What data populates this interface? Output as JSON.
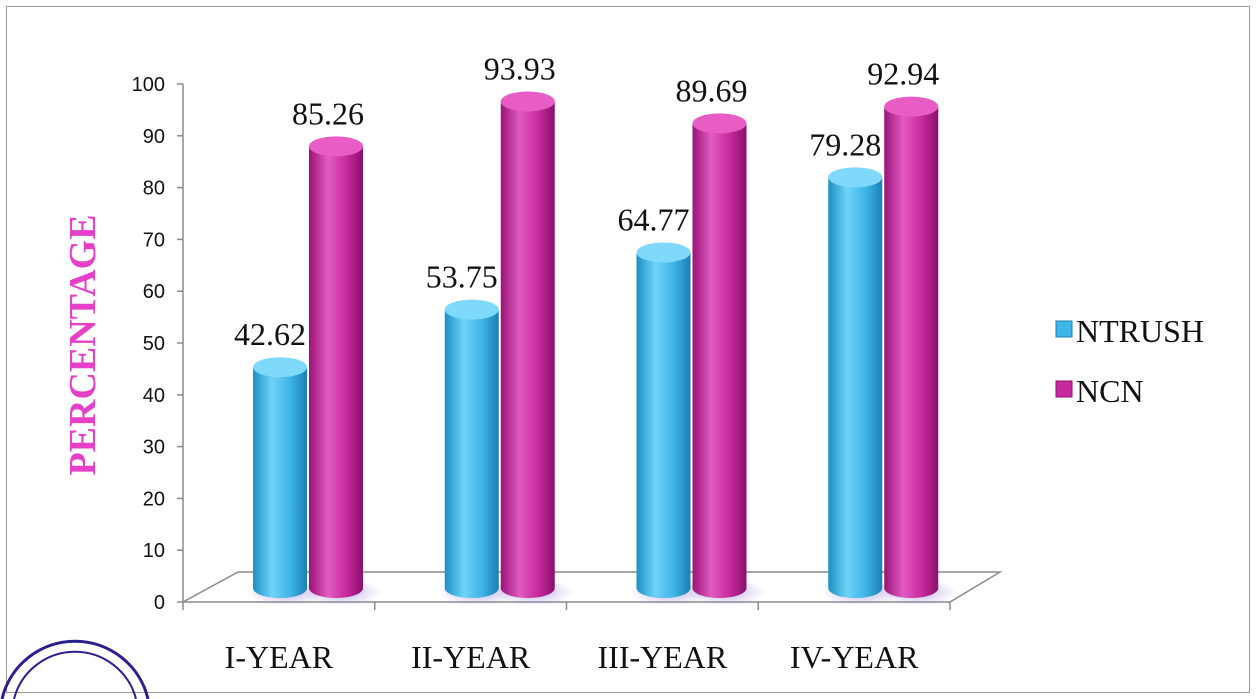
{
  "chart_data": {
    "type": "bar",
    "style": "3d-cylinder",
    "categories": [
      "I-YEAR",
      "II-YEAR",
      "III-YEAR",
      "IV-YEAR"
    ],
    "series": [
      {
        "name": "NTRUSH",
        "values": [
          42.62,
          53.75,
          64.77,
          79.28
        ],
        "color": "#3fb6e8"
      },
      {
        "name": "NCN",
        "values": [
          85.26,
          93.93,
          89.69,
          92.94
        ],
        "color": "#c8289e"
      }
    ],
    "data_labels": [
      [
        "42.62",
        "53.75",
        "64.77",
        "79.28"
      ],
      [
        "85.26",
        "93.93",
        "89.69",
        "92.94"
      ]
    ],
    "ylabel": "PERCENTAGE",
    "ylabel_color": "#e63fc8",
    "xlabel": "",
    "title": "",
    "ylim": [
      0,
      100
    ],
    "yticks": [
      "0",
      "10",
      "20",
      "30",
      "40",
      "50",
      "60",
      "70",
      "80",
      "90",
      "100"
    ],
    "legend_position": "right",
    "grid": false
  }
}
